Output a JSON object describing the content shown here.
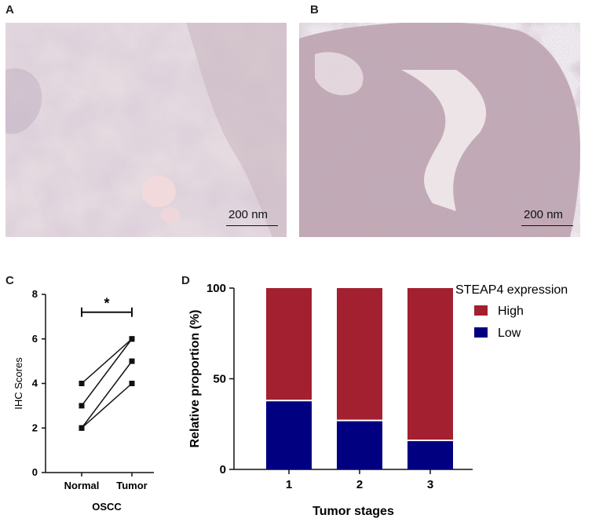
{
  "panels": {
    "A": {
      "letter": "A",
      "scale_label": "200 nm"
    },
    "B": {
      "letter": "B",
      "scale_label": "200 nm"
    },
    "C": {
      "letter": "C"
    },
    "D": {
      "letter": "D"
    }
  },
  "chart_data": [
    {
      "type": "line",
      "panel": "C",
      "title": "",
      "xlabel": "OSCC",
      "ylabel": "IHC Scores",
      "categories": [
        "Normal",
        "Tumor"
      ],
      "ylim": [
        0,
        8
      ],
      "yticks": [
        0,
        2,
        4,
        6,
        8
      ],
      "series": [
        {
          "values": [
            4,
            6
          ]
        },
        {
          "values": [
            3,
            6
          ]
        },
        {
          "values": [
            2,
            5
          ]
        },
        {
          "values": [
            2,
            4
          ]
        }
      ],
      "significance": {
        "label": "*",
        "between": [
          "Normal",
          "Tumor"
        ]
      },
      "colors": {
        "line": "#111111"
      }
    },
    {
      "type": "bar",
      "stacked": true,
      "panel": "D",
      "title": "",
      "xlabel": "Tumor stages",
      "ylabel": "Relative proportion (%)",
      "categories": [
        "1",
        "2",
        "3"
      ],
      "ylim": [
        0,
        100
      ],
      "yticks": [
        0,
        50,
        100
      ],
      "legend_title": "STEAP4 expression",
      "legend_position": "top-right",
      "series": [
        {
          "name": "Low",
          "values": [
            38,
            27,
            16
          ],
          "color": "#000080"
        },
        {
          "name": "High",
          "values": [
            62,
            73,
            84
          ],
          "color": "#A32030"
        }
      ]
    }
  ]
}
